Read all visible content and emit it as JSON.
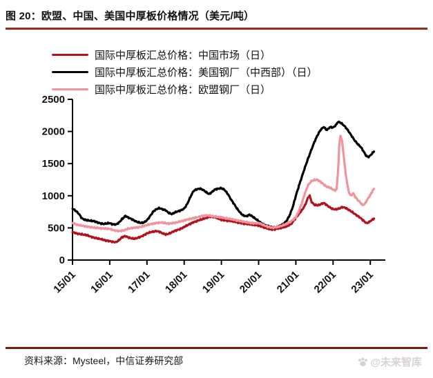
{
  "figure": {
    "title": "图 20：欧盟、中国、美国中厚板价格情况（美元/吨）",
    "source": "资料来源：Mysteel，中信证券研究部",
    "watermark_text": "@未来智库",
    "accent_color_top_rule": "#9a2a1e",
    "accent_color_bottom_rule": "#7e1a10",
    "watermark_color": "#d9d2d2"
  },
  "chart_data": {
    "type": "line",
    "title": "欧盟、中国、美国中厚板价格情况",
    "unit": "美元/吨",
    "grid": false,
    "legend_position": "top-left",
    "ylim": [
      0,
      2500
    ],
    "yticks": [
      0,
      500,
      1000,
      1500,
      2000,
      2500
    ],
    "xticks": [
      "15/01",
      "16/01",
      "17/01",
      "18/01",
      "19/01",
      "20/01",
      "21/01",
      "22/01",
      "23/01"
    ],
    "x_unit": "year (15/01 = Jan 2015)",
    "series": [
      {
        "name": "国际中厚板汇总价格：中国市场（日）",
        "color": "#B2121B",
        "points": [
          [
            2015.0,
            435
          ],
          [
            2015.12,
            412
          ],
          [
            2015.25,
            400
          ],
          [
            2015.38,
            388
          ],
          [
            2015.5,
            362
          ],
          [
            2015.62,
            342
          ],
          [
            2015.75,
            328
          ],
          [
            2015.88,
            305
          ],
          [
            2016.0,
            295
          ],
          [
            2016.08,
            282
          ],
          [
            2016.17,
            278
          ],
          [
            2016.25,
            310
          ],
          [
            2016.33,
            355
          ],
          [
            2016.42,
            372
          ],
          [
            2016.5,
            352
          ],
          [
            2016.58,
            338
          ],
          [
            2016.67,
            332
          ],
          [
            2016.75,
            345
          ],
          [
            2016.83,
            362
          ],
          [
            2016.92,
            388
          ],
          [
            2017.0,
            415
          ],
          [
            2017.12,
            438
          ],
          [
            2017.25,
            450
          ],
          [
            2017.33,
            442
          ],
          [
            2017.42,
            415
          ],
          [
            2017.5,
            398
          ],
          [
            2017.58,
            408
          ],
          [
            2017.67,
            432
          ],
          [
            2017.75,
            455
          ],
          [
            2017.88,
            478
          ],
          [
            2018.0,
            515
          ],
          [
            2018.12,
            552
          ],
          [
            2018.25,
            588
          ],
          [
            2018.38,
            615
          ],
          [
            2018.5,
            638
          ],
          [
            2018.62,
            662
          ],
          [
            2018.75,
            678
          ],
          [
            2018.88,
            655
          ],
          [
            2019.0,
            625
          ],
          [
            2019.12,
            615
          ],
          [
            2019.25,
            608
          ],
          [
            2019.38,
            592
          ],
          [
            2019.5,
            578
          ],
          [
            2019.62,
            565
          ],
          [
            2019.75,
            558
          ],
          [
            2019.88,
            545
          ],
          [
            2020.0,
            538
          ],
          [
            2020.12,
            512
          ],
          [
            2020.25,
            488
          ],
          [
            2020.38,
            472
          ],
          [
            2020.5,
            488
          ],
          [
            2020.62,
            502
          ],
          [
            2020.75,
            522
          ],
          [
            2020.88,
            565
          ],
          [
            2021.0,
            655
          ],
          [
            2021.08,
            715
          ],
          [
            2021.17,
            782
          ],
          [
            2021.25,
            855
          ],
          [
            2021.33,
            975
          ],
          [
            2021.37,
            1005
          ],
          [
            2021.42,
            905
          ],
          [
            2021.5,
            858
          ],
          [
            2021.58,
            852
          ],
          [
            2021.67,
            868
          ],
          [
            2021.75,
            888
          ],
          [
            2021.83,
            855
          ],
          [
            2021.92,
            815
          ],
          [
            2022.0,
            792
          ],
          [
            2022.08,
            788
          ],
          [
            2022.17,
            802
          ],
          [
            2022.25,
            825
          ],
          [
            2022.33,
            812
          ],
          [
            2022.42,
            782
          ],
          [
            2022.5,
            752
          ],
          [
            2022.58,
            718
          ],
          [
            2022.67,
            682
          ],
          [
            2022.75,
            648
          ],
          [
            2022.83,
            605
          ],
          [
            2022.9,
            572
          ],
          [
            2022.96,
            588
          ],
          [
            2023.03,
            618
          ],
          [
            2023.1,
            645
          ]
        ]
      },
      {
        "name": "国际中厚板汇总价格：美国钢厂（中西部）（日）",
        "color": "#000000",
        "points": [
          [
            2015.0,
            800
          ],
          [
            2015.08,
            770
          ],
          [
            2015.17,
            720
          ],
          [
            2015.25,
            650
          ],
          [
            2015.33,
            625
          ],
          [
            2015.42,
            618
          ],
          [
            2015.5,
            610
          ],
          [
            2015.58,
            605
          ],
          [
            2015.67,
            585
          ],
          [
            2015.75,
            570
          ],
          [
            2015.83,
            562
          ],
          [
            2015.92,
            570
          ],
          [
            2016.0,
            575
          ],
          [
            2016.08,
            556
          ],
          [
            2016.17,
            552
          ],
          [
            2016.25,
            585
          ],
          [
            2016.33,
            635
          ],
          [
            2016.42,
            688
          ],
          [
            2016.5,
            660
          ],
          [
            2016.58,
            640
          ],
          [
            2016.67,
            610
          ],
          [
            2016.75,
            590
          ],
          [
            2016.83,
            578
          ],
          [
            2016.92,
            585
          ],
          [
            2017.0,
            618
          ],
          [
            2017.08,
            680
          ],
          [
            2017.17,
            755
          ],
          [
            2017.25,
            790
          ],
          [
            2017.33,
            808
          ],
          [
            2017.42,
            790
          ],
          [
            2017.5,
            775
          ],
          [
            2017.58,
            735
          ],
          [
            2017.67,
            715
          ],
          [
            2017.75,
            740
          ],
          [
            2017.83,
            758
          ],
          [
            2017.92,
            775
          ],
          [
            2018.0,
            800
          ],
          [
            2018.08,
            870
          ],
          [
            2018.17,
            985
          ],
          [
            2018.25,
            1075
          ],
          [
            2018.33,
            1100
          ],
          [
            2018.42,
            1112
          ],
          [
            2018.5,
            1095
          ],
          [
            2018.58,
            1060
          ],
          [
            2018.67,
            1025
          ],
          [
            2018.75,
            1060
          ],
          [
            2018.83,
            1100
          ],
          [
            2018.92,
            1110
          ],
          [
            2019.0,
            1118
          ],
          [
            2019.08,
            1095
          ],
          [
            2019.17,
            1030
          ],
          [
            2019.25,
            950
          ],
          [
            2019.33,
            880
          ],
          [
            2019.42,
            800
          ],
          [
            2019.5,
            740
          ],
          [
            2019.58,
            695
          ],
          [
            2019.67,
            680
          ],
          [
            2019.75,
            705
          ],
          [
            2019.83,
            680
          ],
          [
            2019.92,
            640
          ],
          [
            2020.0,
            605
          ],
          [
            2020.08,
            570
          ],
          [
            2020.17,
            545
          ],
          [
            2020.25,
            528
          ],
          [
            2020.33,
            515
          ],
          [
            2020.42,
            505
          ],
          [
            2020.5,
            515
          ],
          [
            2020.58,
            535
          ],
          [
            2020.67,
            565
          ],
          [
            2020.75,
            610
          ],
          [
            2020.83,
            690
          ],
          [
            2020.92,
            830
          ],
          [
            2021.0,
            1000
          ],
          [
            2021.08,
            1150
          ],
          [
            2021.17,
            1310
          ],
          [
            2021.25,
            1450
          ],
          [
            2021.33,
            1580
          ],
          [
            2021.42,
            1720
          ],
          [
            2021.5,
            1840
          ],
          [
            2021.58,
            1940
          ],
          [
            2021.67,
            2030
          ],
          [
            2021.75,
            2070
          ],
          [
            2021.83,
            2020
          ],
          [
            2021.92,
            2070
          ],
          [
            2022.0,
            2060
          ],
          [
            2022.08,
            2100
          ],
          [
            2022.13,
            2150
          ],
          [
            2022.19,
            2140
          ],
          [
            2022.25,
            2115
          ],
          [
            2022.33,
            2070
          ],
          [
            2022.42,
            2000
          ],
          [
            2022.5,
            1930
          ],
          [
            2022.58,
            1860
          ],
          [
            2022.67,
            1800
          ],
          [
            2022.75,
            1755
          ],
          [
            2022.83,
            1680
          ],
          [
            2022.88,
            1630
          ],
          [
            2022.94,
            1600
          ],
          [
            2023.0,
            1625
          ],
          [
            2023.06,
            1665
          ],
          [
            2023.1,
            1690
          ]
        ]
      },
      {
        "name": "国际中厚板汇总价格：欧盟钢厂（日）",
        "color": "#F2939B",
        "points": [
          [
            2015.0,
            575
          ],
          [
            2015.12,
            550
          ],
          [
            2015.25,
            535
          ],
          [
            2015.38,
            522
          ],
          [
            2015.5,
            510
          ],
          [
            2015.62,
            502
          ],
          [
            2015.75,
            495
          ],
          [
            2015.88,
            490
          ],
          [
            2016.0,
            485
          ],
          [
            2016.12,
            462
          ],
          [
            2016.25,
            450
          ],
          [
            2016.38,
            462
          ],
          [
            2016.5,
            488
          ],
          [
            2016.62,
            500
          ],
          [
            2016.75,
            508
          ],
          [
            2016.88,
            522
          ],
          [
            2017.0,
            545
          ],
          [
            2017.12,
            562
          ],
          [
            2017.25,
            575
          ],
          [
            2017.38,
            585
          ],
          [
            2017.5,
            572
          ],
          [
            2017.62,
            568
          ],
          [
            2017.75,
            580
          ],
          [
            2017.88,
            598
          ],
          [
            2018.0,
            615
          ],
          [
            2018.12,
            635
          ],
          [
            2018.25,
            652
          ],
          [
            2018.38,
            668
          ],
          [
            2018.5,
            688
          ],
          [
            2018.62,
            695
          ],
          [
            2018.75,
            685
          ],
          [
            2018.88,
            672
          ],
          [
            2019.0,
            665
          ],
          [
            2019.12,
            650
          ],
          [
            2019.25,
            638
          ],
          [
            2019.38,
            622
          ],
          [
            2019.5,
            608
          ],
          [
            2019.62,
            595
          ],
          [
            2019.75,
            580
          ],
          [
            2019.88,
            572
          ],
          [
            2020.0,
            578
          ],
          [
            2020.12,
            548
          ],
          [
            2020.25,
            518
          ],
          [
            2020.38,
            502
          ],
          [
            2020.5,
            512
          ],
          [
            2020.62,
            535
          ],
          [
            2020.75,
            565
          ],
          [
            2020.88,
            605
          ],
          [
            2021.0,
            665
          ],
          [
            2021.08,
            760
          ],
          [
            2021.17,
            900
          ],
          [
            2021.25,
            1050
          ],
          [
            2021.33,
            1165
          ],
          [
            2021.42,
            1230
          ],
          [
            2021.5,
            1245
          ],
          [
            2021.58,
            1248
          ],
          [
            2021.67,
            1215
          ],
          [
            2021.75,
            1175
          ],
          [
            2021.83,
            1140
          ],
          [
            2021.92,
            1125
          ],
          [
            2022.0,
            1095
          ],
          [
            2022.06,
            1085
          ],
          [
            2022.1,
            1105
          ],
          [
            2022.14,
            1450
          ],
          [
            2022.17,
            1830
          ],
          [
            2022.2,
            1930
          ],
          [
            2022.24,
            1860
          ],
          [
            2022.29,
            1600
          ],
          [
            2022.33,
            1380
          ],
          [
            2022.38,
            1190
          ],
          [
            2022.42,
            1060
          ],
          [
            2022.48,
            1000
          ],
          [
            2022.54,
            1040
          ],
          [
            2022.6,
            980
          ],
          [
            2022.67,
            930
          ],
          [
            2022.73,
            895
          ],
          [
            2022.79,
            855
          ],
          [
            2022.85,
            870
          ],
          [
            2022.92,
            940
          ],
          [
            2023.0,
            1010
          ],
          [
            2023.06,
            1075
          ],
          [
            2023.1,
            1105
          ]
        ]
      }
    ]
  }
}
